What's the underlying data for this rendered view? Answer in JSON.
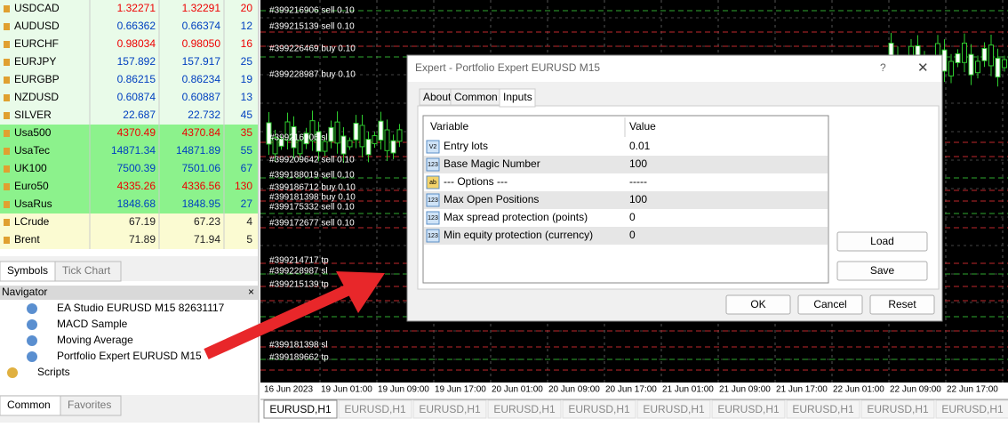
{
  "market_watch": {
    "rows": [
      {
        "symbol": "USDCAD",
        "bid": "1.32271",
        "ask": "1.32291",
        "spread": "20"
      },
      {
        "symbol": "AUDUSD",
        "bid": "0.66362",
        "ask": "0.66374",
        "spread": "12"
      },
      {
        "symbol": "EURCHF",
        "bid": "0.98034",
        "ask": "0.98050",
        "spread": "16"
      },
      {
        "symbol": "EURJPY",
        "bid": "157.892",
        "ask": "157.917",
        "spread": "25"
      },
      {
        "symbol": "EURGBP",
        "bid": "0.86215",
        "ask": "0.86234",
        "spread": "19"
      },
      {
        "symbol": "NZDUSD",
        "bid": "0.60874",
        "ask": "0.60887",
        "spread": "13"
      },
      {
        "symbol": "SILVER",
        "bid": "22.687",
        "ask": "22.732",
        "spread": "45"
      },
      {
        "symbol": "Usa500",
        "bid": "4370.49",
        "ask": "4370.84",
        "spread": "35"
      },
      {
        "symbol": "UsaTec",
        "bid": "14871.34",
        "ask": "14871.89",
        "spread": "55"
      },
      {
        "symbol": "UK100",
        "bid": "7500.39",
        "ask": "7501.06",
        "spread": "67"
      },
      {
        "symbol": "Euro50",
        "bid": "4335.26",
        "ask": "4336.56",
        "spread": "130"
      },
      {
        "symbol": "UsaRus",
        "bid": "1848.68",
        "ask": "1848.95",
        "spread": "27"
      },
      {
        "symbol": "LCrude",
        "bid": "67.19",
        "ask": "67.23",
        "spread": "4"
      },
      {
        "symbol": "Brent",
        "bid": "71.89",
        "ask": "71.94",
        "spread": "5"
      }
    ],
    "tabs": [
      "Symbols",
      "Tick Chart"
    ]
  },
  "navigator": {
    "title": "Navigator",
    "items": [
      "EA Studio EURUSD M15 82631117",
      "MACD Sample",
      "Moving Average",
      "Portfolio Expert EURUSD M15",
      "Scripts"
    ],
    "tabs": [
      "Common",
      "Favorites"
    ]
  },
  "chart": {
    "order_labels": [
      "#399216906 sell 0.10",
      "#399215139 sell 0.10",
      "#399226469 buy 0.10",
      "#399228987 buy 0.10",
      "#399216906 sl",
      "#399209642 sell 0.10",
      "#399188019 sell 0.10",
      "#399186712 buy 0.10",
      "#399181398 buy 0.10",
      "#399175332 sell 0.10",
      "#399172677 sell 0.10",
      "#399214717 tp",
      "#399228987 sl",
      "#399215139 tp",
      "#399181398 sl",
      "#399189662 tp"
    ],
    "time_labels": [
      "16 Jun 2023",
      "19 Jun 01:00",
      "19 Jun 09:00",
      "19 Jun 17:00",
      "20 Jun 01:00",
      "20 Jun 09:00",
      "20 Jun 17:00",
      "21 Jun 01:00",
      "21 Jun 09:00",
      "21 Jun 17:00",
      "22 Jun 01:00",
      "22 Jun 09:00",
      "22 Jun 17:00"
    ],
    "tabs": [
      "EURUSD,H1",
      "EURUSD,H1",
      "EURUSD,H1",
      "EURUSD,H1",
      "EURUSD,H1",
      "EURUSD,H1",
      "EURUSD,H1",
      "EURUSD,H1",
      "EURUSD,H1",
      "EURUSD,H1"
    ]
  },
  "dialog": {
    "title": "Expert - Portfolio Expert EURUSD M15",
    "help": "?",
    "tabs": [
      "About",
      "Common",
      "Inputs"
    ],
    "columns": [
      "Variable",
      "Value"
    ],
    "rows": [
      {
        "icon": "V2",
        "variable": "Entry lots",
        "value": "0.01"
      },
      {
        "icon": "123",
        "variable": "Base Magic Number",
        "value": "100"
      },
      {
        "icon": "ab",
        "variable": "--- Options ---",
        "value": "-----"
      },
      {
        "icon": "123",
        "variable": "Max Open Positions",
        "value": "100"
      },
      {
        "icon": "123",
        "variable": "Max spread protection (points)",
        "value": "0"
      },
      {
        "icon": "123",
        "variable": "Min equity protection (currency)",
        "value": "0"
      }
    ],
    "buttons": [
      "Load",
      "Save",
      "OK",
      "Cancel",
      "Reset"
    ]
  }
}
